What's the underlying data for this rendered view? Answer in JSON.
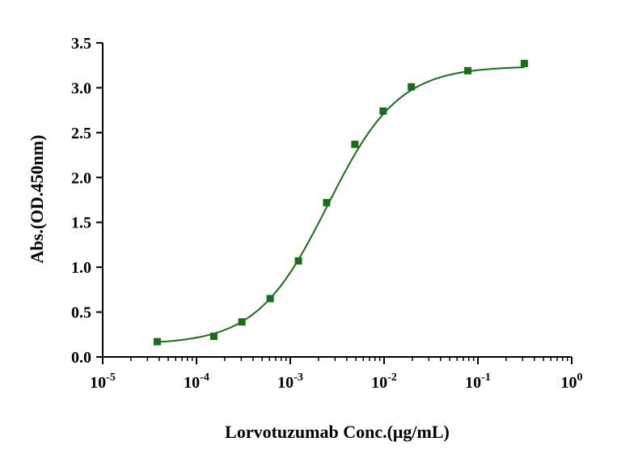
{
  "chart_data": {
    "type": "scatter",
    "xlabel": "Lorvotuzumab Conc.(μg/mL)",
    "ylabel": "Abs.(OD.450nm)",
    "x_scale": "log",
    "xlim": [
      1e-05,
      1
    ],
    "ylim": [
      0,
      3.5
    ],
    "x_ticks": [
      {
        "base": "10",
        "exp": "-5",
        "value": 1e-05
      },
      {
        "base": "10",
        "exp": "-4",
        "value": 0.0001
      },
      {
        "base": "10",
        "exp": "-3",
        "value": 0.001
      },
      {
        "base": "10",
        "exp": "-2",
        "value": 0.01
      },
      {
        "base": "10",
        "exp": "-1",
        "value": 0.1
      },
      {
        "base": "10",
        "exp": "0",
        "value": 1
      }
    ],
    "y_ticks": [
      "0.0",
      "0.5",
      "1.0",
      "1.5",
      "2.0",
      "2.5",
      "3.0",
      "3.5"
    ],
    "grid": false,
    "color": "#1a6b1a",
    "series": [
      {
        "x": [
          3.81e-05,
          0.000153,
          0.000305,
          0.00061,
          0.00122,
          0.00244,
          0.00488,
          0.00977,
          0.0195,
          0.0781,
          0.3125
        ],
        "y": [
          0.17,
          0.23,
          0.39,
          0.65,
          1.07,
          1.72,
          2.37,
          2.74,
          3.01,
          3.19,
          3.27
        ]
      }
    ],
    "fit_curve": {
      "model": "4PL",
      "bottom": 0.14,
      "top": 3.24,
      "ec50": 0.0025,
      "hill": 1.15
    }
  }
}
